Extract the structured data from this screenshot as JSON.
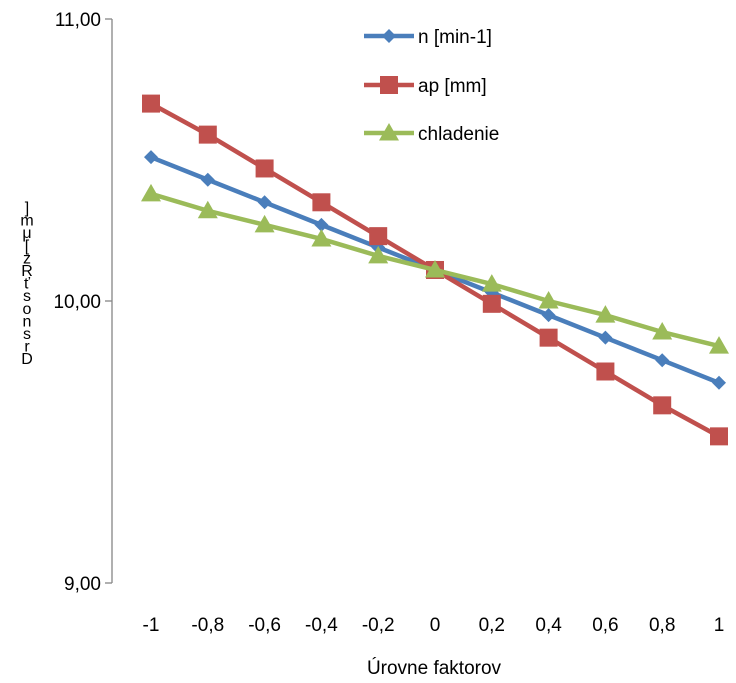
{
  "chart_data": {
    "type": "line",
    "x": [
      -1,
      -0.8,
      -0.6,
      -0.4,
      -0.2,
      0,
      0.2,
      0.4,
      0.6,
      0.8,
      1
    ],
    "x_tick_labels": [
      "-1",
      "-0,8",
      "-0,6",
      "-0,4",
      "-0,2",
      "0",
      "0,2",
      "0,4",
      "0,6",
      "0,8",
      "1"
    ],
    "y_tick_labels": [
      "9,00",
      "10,00",
      "11,00"
    ],
    "ylim": [
      9,
      11
    ],
    "y_ticks": [
      9,
      10,
      11
    ],
    "xlabel": "Úrovne faktorov",
    "ylabel_chars": [
      "]",
      "m",
      "μ",
      "[",
      "z",
      "R",
      "ť",
      "s",
      "o",
      "n",
      "s",
      "r",
      "D"
    ],
    "grid": false,
    "legend_position": "top-right",
    "series": [
      {
        "name": "n [min-1]",
        "color": "#4a7ebb",
        "marker": "diamond",
        "values": [
          10.51,
          10.43,
          10.35,
          10.27,
          10.19,
          10.11,
          10.03,
          9.95,
          9.87,
          9.79,
          9.71
        ]
      },
      {
        "name": "ap [mm]",
        "color": "#c0504d",
        "marker": "square",
        "values": [
          10.7,
          10.59,
          10.47,
          10.35,
          10.23,
          10.11,
          9.99,
          9.87,
          9.75,
          9.63,
          9.52
        ]
      },
      {
        "name": "chladenie",
        "color": "#9bbb59",
        "marker": "triangle",
        "values": [
          10.38,
          10.32,
          10.27,
          10.22,
          10.16,
          10.11,
          10.06,
          10.0,
          9.95,
          9.89,
          9.84
        ]
      }
    ]
  }
}
